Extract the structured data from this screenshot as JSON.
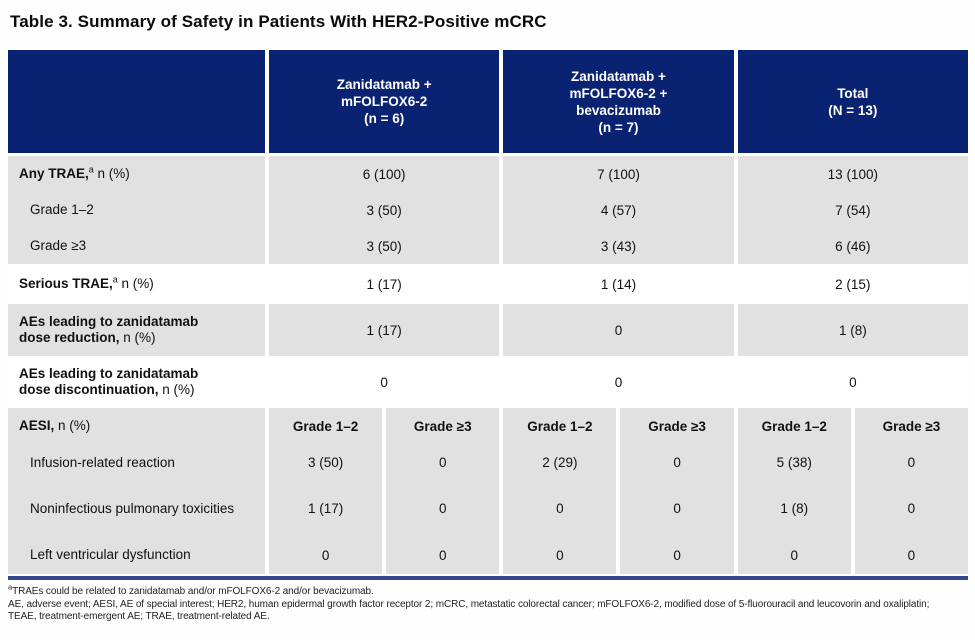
{
  "title": "Table 3. Summary of Safety in Patients With HER2-Positive mCRC",
  "colors": {
    "header_navy": "#0a2272",
    "row_gray": "#e1e1e1",
    "row_white": "#ffffff",
    "bottom_rule_blue": "#35498f",
    "header_text": "#ffffff",
    "body_text": "#111111"
  },
  "header": {
    "groups": [
      {
        "lines": [
          "Zanidatamab +",
          "mFOLFOX6-2",
          "(n = 6)"
        ]
      },
      {
        "lines": [
          "Zanidatamab +",
          "mFOLFOX6-2 +",
          "bevacizumab",
          "(n = 7)"
        ]
      },
      {
        "lines": [
          "Total",
          "(N = 13)"
        ]
      }
    ]
  },
  "rows": [
    {
      "label_bold": "Any TRAE,",
      "label_sup": "a",
      "label_rest": " n (%)",
      "values": [
        "6 (100)",
        "7 (100)",
        "13 (100)"
      ]
    },
    {
      "label_rest": "Grade 1–2",
      "values": [
        "3 (50)",
        "4 (57)",
        "7 (54)"
      ]
    },
    {
      "label_rest": "Grade ≥3",
      "values": [
        "3 (50)",
        "3 (43)",
        "6 (46)"
      ]
    },
    {
      "label_bold": "Serious TRAE,",
      "label_sup": "a",
      "label_rest": " n (%)",
      "values": [
        "1 (17)",
        "1 (14)",
        "2 (15)"
      ]
    },
    {
      "label_bold": "AEs leading to zanidatamab dose reduction,",
      "label_rest": " n (%)",
      "values": [
        "1 (17)",
        "0",
        "1 (8)"
      ]
    },
    {
      "label_bold": "AEs leading to zanidatamab dose discontinuation,",
      "label_rest": " n (%)",
      "values": [
        "0",
        "0",
        "0"
      ]
    }
  ],
  "aesi": {
    "label_bold": "AESI,",
    "label_rest": " n (%)",
    "sub_headers": [
      "Grade 1–2",
      "Grade ≥3",
      "Grade 1–2",
      "Grade ≥3",
      "Grade 1–2",
      "Grade ≥3"
    ],
    "rows": [
      {
        "label": "Infusion-related reaction",
        "values": [
          "3 (50)",
          "0",
          "2 (29)",
          "0",
          "5 (38)",
          "0"
        ]
      },
      {
        "label": "Noninfectious pulmonary toxicities",
        "values": [
          "1 (17)",
          "0",
          "0",
          "0",
          "1 (8)",
          "0"
        ]
      },
      {
        "label": "Left ventricular dysfunction",
        "values": [
          "0",
          "0",
          "0",
          "0",
          "0",
          "0"
        ]
      }
    ]
  },
  "footnotes": {
    "sup": "a",
    "line1": "TRAEs could be related to zanidatamab and/or mFOLFOX6-2 and/or bevacizumab.",
    "abbreviations": "AE, adverse event; AESI, AE of special interest; HER2, human epidermal growth factor receptor 2; mCRC, metastatic colorectal cancer; mFOLFOX6-2, modified dose of 5-fluorouracil and leucovorin and oxaliplatin; TEAE, treatment-emergent AE; TRAE, treatment-related AE."
  }
}
